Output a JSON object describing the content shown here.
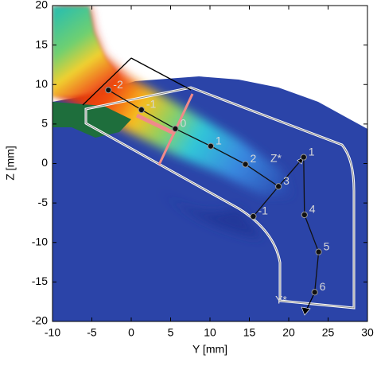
{
  "chart_data": {
    "type": "field",
    "xlabel": "Y [mm]",
    "ylabel": "Z [mm]",
    "xlim": [
      -10,
      30
    ],
    "ylim": [
      -20,
      20
    ],
    "xticks": [
      -10,
      -5,
      0,
      5,
      10,
      15,
      20,
      25,
      30
    ],
    "yticks": [
      -20,
      -15,
      -10,
      -5,
      0,
      5,
      10,
      15,
      20
    ],
    "points": {
      "x": [
        -2.9,
        1.3,
        5.6,
        10.1,
        14.5,
        18.7,
        21.9,
        15.5,
        22.0,
        23.8,
        23.3
      ],
      "y": [
        9.3,
        6.8,
        4.4,
        2.2,
        -0.1,
        -2.9,
        0.8,
        -6.7,
        -6.5,
        -11.2,
        -16.3
      ],
      "labels": [
        "-2",
        "-1",
        "0",
        "1",
        "2",
        "3",
        "1",
        "-1",
        "4",
        "5",
        "6"
      ],
      "color": "#111111"
    },
    "annotations": [
      "Z*",
      "Y*"
    ]
  }
}
